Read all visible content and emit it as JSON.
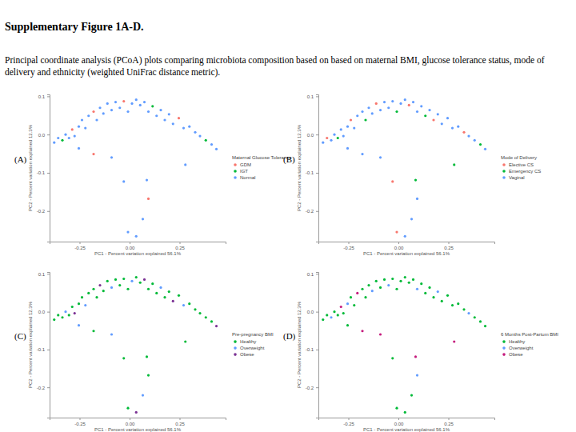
{
  "title": "Supplementary Figure 1A-D.",
  "caption": "Principal coordinate analysis (PCoA) plots comparing microbiota composition based on based on maternal BMI, glucose tolerance status, mode of delivery and ethnicity (weighted UniFrac distance metric).",
  "chart_data": [
    {
      "type": "scatter",
      "panel_label": "(A)",
      "legend_title": "Maternal Glucose Tolerance",
      "legend": "right",
      "x_label": "PC1 - Percent variation explained 56.1%",
      "y_label": "PC2 - Percent variation explained 12.3%",
      "xlim": [
        -0.4,
        0.48
      ],
      "ylim": [
        -0.28,
        0.105
      ],
      "xticks": [
        {
          "value": -0.25,
          "label": "-0.25"
        },
        {
          "value": 0,
          "label": "0.00"
        },
        {
          "value": 0.25,
          "label": "0.25"
        }
      ],
      "yticks": [
        {
          "value": 0.1,
          "label": "0.1"
        },
        {
          "value": 0,
          "label": "0.0"
        },
        {
          "value": -0.1,
          "label": "-0.1"
        },
        {
          "value": -0.2,
          "label": "-0.2"
        }
      ],
      "series": [
        {
          "name": "GDM",
          "color": "#f8766d",
          "marker": "circle",
          "x": [
            -0.287,
            -0.18,
            -0.029,
            0.246,
            -0.18,
            0.094
          ],
          "y": [
            0.013,
            0.06,
            0.087,
            0.043,
            -0.051,
            -0.168
          ]
        },
        {
          "name": "IGT",
          "color": "#00ba38",
          "marker": "circle",
          "x": [
            -0.336,
            0.115,
            0.381
          ],
          "y": [
            -0.015,
            0.074,
            -0.015
          ]
        },
        {
          "name": "Normal",
          "color": "#619cff",
          "marker": "circle",
          "x": [
            -0.377,
            -0.357,
            -0.32,
            -0.303,
            -0.275,
            -0.254,
            -0.238,
            -0.221,
            -0.205,
            -0.164,
            -0.148,
            -0.131,
            -0.111,
            -0.09,
            -0.07,
            -0.049,
            -0.008,
            0.012,
            0.033,
            0.053,
            0.074,
            0.094,
            0.135,
            0.156,
            0.176,
            0.197,
            0.217,
            0.27,
            0.299,
            0.328,
            0.352,
            0.41,
            0.434,
            -0.09,
            -0.029,
            0.086,
            0.066,
            -0.008,
            0.033,
            0.279,
            -0.254
          ],
          "y": [
            -0.021,
            -0.009,
            0.0,
            -0.009,
            -0.004,
            0.021,
            0.038,
            0.017,
            0.049,
            0.038,
            0.07,
            0.055,
            0.081,
            0.064,
            0.085,
            0.07,
            0.06,
            0.081,
            0.091,
            0.077,
            0.085,
            0.06,
            0.049,
            0.064,
            0.038,
            0.053,
            0.028,
            0.017,
            0.021,
            0.006,
            -0.004,
            -0.026,
            -0.038,
            -0.06,
            -0.123,
            -0.119,
            -0.221,
            -0.255,
            -0.266,
            -0.079,
            -0.036
          ]
        }
      ]
    },
    {
      "type": "scatter",
      "panel_label": "(B)",
      "legend_title": "Mode of Delivery",
      "legend": "right",
      "x_label": "PC1 - Percent variation explained 56.1%",
      "y_label": "PC2 - Percent variation explained 12.3%",
      "xlim": [
        -0.4,
        0.48
      ],
      "ylim": [
        -0.28,
        0.105
      ],
      "xticks": [
        {
          "value": -0.25,
          "label": "-0.25"
        },
        {
          "value": 0,
          "label": "0.00"
        },
        {
          "value": 0.25,
          "label": "0.25"
        }
      ],
      "yticks": [
        {
          "value": 0.1,
          "label": "0.1"
        },
        {
          "value": 0,
          "label": "0.0"
        },
        {
          "value": -0.1,
          "label": "-0.1"
        },
        {
          "value": -0.2,
          "label": "-0.2"
        }
      ],
      "series": [
        {
          "name": "Elective CS",
          "color": "#f8766d",
          "marker": "circle",
          "x": [
            -0.357,
            -0.238,
            -0.111,
            0.053,
            0.176,
            0.328,
            -0.029,
            -0.008
          ],
          "y": [
            -0.009,
            0.038,
            0.081,
            0.077,
            0.038,
            0.006,
            -0.123,
            -0.255
          ]
        },
        {
          "name": "Emergency CS",
          "color": "#00ba38",
          "marker": "circle",
          "x": [
            -0.303,
            -0.164,
            -0.008,
            0.135,
            0.41,
            0.086,
            0.279
          ],
          "y": [
            -0.009,
            0.038,
            0.06,
            0.049,
            -0.026,
            -0.119,
            -0.079
          ]
        },
        {
          "name": "Vaginal",
          "color": "#619cff",
          "marker": "circle",
          "x": [
            -0.377,
            -0.336,
            -0.32,
            -0.287,
            -0.275,
            -0.254,
            -0.221,
            -0.205,
            -0.18,
            -0.148,
            -0.131,
            -0.09,
            -0.07,
            -0.049,
            -0.029,
            0.012,
            0.033,
            0.074,
            0.094,
            0.115,
            0.156,
            0.197,
            0.217,
            0.246,
            0.27,
            0.299,
            0.352,
            0.381,
            0.434,
            -0.18,
            -0.09,
            0.094,
            0.066,
            0.033,
            -0.254
          ],
          "y": [
            -0.021,
            -0.015,
            0.0,
            0.013,
            -0.004,
            0.021,
            0.017,
            0.049,
            0.06,
            0.07,
            0.055,
            0.064,
            0.085,
            0.07,
            0.087,
            0.081,
            0.091,
            0.085,
            0.06,
            0.074,
            0.064,
            0.053,
            0.028,
            0.043,
            0.017,
            0.021,
            -0.004,
            -0.015,
            -0.038,
            -0.051,
            -0.06,
            -0.168,
            -0.221,
            -0.266,
            -0.036
          ]
        }
      ]
    },
    {
      "type": "scatter",
      "panel_label": "(C)",
      "legend_title": "Pre-pregnancy BMI",
      "legend": "right",
      "x_label": "PC1 - Percent variation explained 56.1%",
      "y_label": "PC2 - Percent variation explained 12.3%",
      "xlim": [
        -0.4,
        0.48
      ],
      "ylim": [
        -0.28,
        0.105
      ],
      "xticks": [
        {
          "value": -0.25,
          "label": "-0.25"
        },
        {
          "value": 0,
          "label": "0.00"
        },
        {
          "value": 0.25,
          "label": "0.25"
        }
      ],
      "yticks": [
        {
          "value": 0.1,
          "label": "0.1"
        },
        {
          "value": 0,
          "label": "0.0"
        },
        {
          "value": -0.1,
          "label": "-0.1"
        },
        {
          "value": -0.2,
          "label": "-0.2"
        }
      ],
      "series": [
        {
          "name": "Healthy",
          "color": "#00ba38",
          "marker": "circle",
          "x": [
            -0.377,
            -0.357,
            -0.336,
            -0.303,
            -0.287,
            -0.254,
            -0.238,
            -0.205,
            -0.18,
            -0.164,
            -0.131,
            -0.111,
            -0.07,
            -0.049,
            -0.029,
            -0.008,
            0.033,
            0.053,
            0.094,
            0.115,
            0.135,
            0.176,
            0.197,
            0.246,
            0.299,
            0.328,
            0.352,
            0.381,
            0.41,
            -0.18,
            -0.029,
            0.086,
            0.094,
            -0.008,
            0.279
          ],
          "y": [
            -0.021,
            -0.009,
            -0.015,
            -0.009,
            0.013,
            0.021,
            0.038,
            0.049,
            0.06,
            0.038,
            0.055,
            0.081,
            0.085,
            0.07,
            0.087,
            0.06,
            0.091,
            0.077,
            0.06,
            0.074,
            0.049,
            0.038,
            0.053,
            0.043,
            0.021,
            0.006,
            -0.004,
            -0.015,
            -0.026,
            -0.051,
            -0.123,
            -0.119,
            -0.168,
            -0.255,
            -0.079
          ]
        },
        {
          "name": "Overweight",
          "color": "#619cff",
          "marker": "circle",
          "x": [
            -0.32,
            -0.221,
            -0.09,
            0.012,
            0.156,
            0.27,
            -0.09,
            0.066,
            -0.254
          ],
          "y": [
            0.0,
            0.017,
            0.064,
            0.081,
            0.064,
            0.017,
            -0.06,
            -0.221,
            -0.036
          ]
        },
        {
          "name": "Obese",
          "color": "#7b3294",
          "marker": "circle",
          "x": [
            -0.275,
            -0.148,
            0.074,
            0.217,
            0.434,
            0.033
          ],
          "y": [
            -0.004,
            0.07,
            0.085,
            0.028,
            -0.038,
            -0.266
          ]
        }
      ]
    },
    {
      "type": "scatter",
      "panel_label": "(D)",
      "legend_title": "6 Months Post-Partum BMI",
      "legend": "right",
      "x_label": "PC1 - Percent variation explained 56.1%",
      "y_label": "PC2 - Percent variation explained 12.3%",
      "xlim": [
        -0.4,
        0.48
      ],
      "ylim": [
        -0.28,
        0.105
      ],
      "xticks": [
        {
          "value": -0.25,
          "label": "-0.25"
        },
        {
          "value": 0,
          "label": "0.00"
        },
        {
          "value": 0.25,
          "label": "0.25"
        }
      ],
      "yticks": [
        {
          "value": 0.1,
          "label": "0.1"
        },
        {
          "value": 0,
          "label": "0.0"
        },
        {
          "value": -0.1,
          "label": "-0.1"
        },
        {
          "value": -0.2,
          "label": "-0.2"
        }
      ],
      "series": [
        {
          "name": "Healthy",
          "color": "#00ba38",
          "marker": "circle",
          "x": [
            -0.377,
            -0.357,
            -0.32,
            -0.303,
            -0.275,
            -0.238,
            -0.221,
            -0.18,
            -0.164,
            -0.148,
            -0.111,
            -0.09,
            -0.07,
            -0.029,
            -0.008,
            0.012,
            0.033,
            0.053,
            0.074,
            0.115,
            0.135,
            0.156,
            0.176,
            0.217,
            0.246,
            0.27,
            0.299,
            0.328,
            0.381,
            0.41,
            0.434,
            -0.029,
            0.066,
            -0.008,
            0.033,
            -0.254
          ],
          "y": [
            -0.021,
            -0.009,
            0.0,
            -0.009,
            -0.004,
            0.038,
            0.017,
            0.06,
            0.038,
            0.07,
            0.081,
            0.064,
            0.085,
            0.087,
            0.06,
            0.081,
            0.091,
            0.077,
            0.085,
            0.074,
            0.049,
            0.064,
            0.038,
            0.028,
            0.043,
            0.017,
            0.021,
            0.006,
            -0.015,
            -0.026,
            -0.038,
            -0.123,
            -0.221,
            -0.255,
            -0.266,
            -0.036
          ]
        },
        {
          "name": "Overweight",
          "color": "#619cff",
          "marker": "circle",
          "x": [
            -0.336,
            -0.254,
            -0.131,
            -0.049,
            0.094,
            0.197,
            0.352,
            0.094
          ],
          "y": [
            -0.015,
            0.021,
            0.055,
            0.07,
            0.06,
            0.053,
            -0.004,
            -0.168
          ]
        },
        {
          "name": "Obese",
          "color": "#c51b7d",
          "marker": "circle",
          "x": [
            -0.287,
            -0.205,
            -0.18,
            -0.09,
            0.086,
            0.279
          ],
          "y": [
            0.013,
            0.049,
            -0.051,
            -0.06,
            -0.119,
            -0.079
          ]
        }
      ]
    }
  ]
}
